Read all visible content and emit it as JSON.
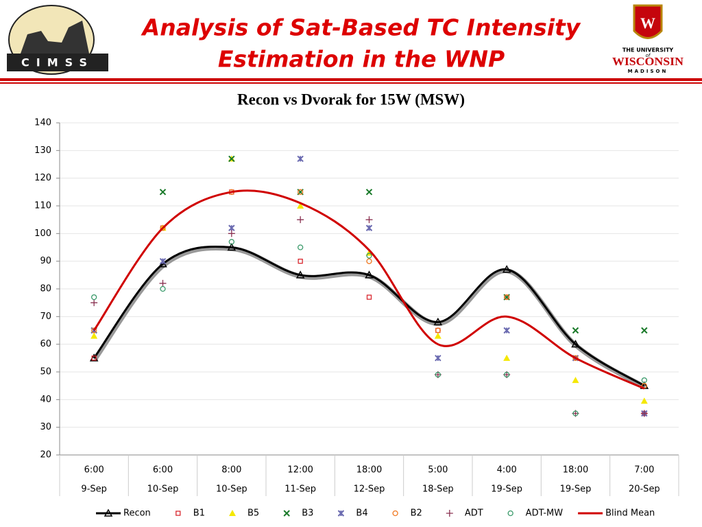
{
  "header": {
    "title_lines": [
      "Analysis of Sat-Based TC Intensity",
      "Estimation in the WNP"
    ],
    "left_logo": "CIMSS",
    "right_logo": [
      "THE UNIVERSITY",
      "of",
      "WISCONSIN",
      "MADISON"
    ]
  },
  "chart_data": {
    "type": "line",
    "title": "Recon vs Dvorak for 15W (MSW)",
    "categories": [
      [
        "6:00",
        "9-Sep"
      ],
      [
        "6:00",
        "10-Sep"
      ],
      [
        "8:00",
        "10-Sep"
      ],
      [
        "12:00",
        "11-Sep"
      ],
      [
        "18:00",
        "12-Sep"
      ],
      [
        "5:00",
        "18-Sep"
      ],
      [
        "4:00",
        "19-Sep"
      ],
      [
        "18:00",
        "19-Sep"
      ],
      [
        "7:00",
        "20-Sep"
      ]
    ],
    "ylim": [
      20,
      140
    ],
    "yticks": [
      20,
      30,
      40,
      50,
      60,
      70,
      80,
      90,
      100,
      110,
      120,
      130,
      140
    ],
    "grid": true,
    "legend": "bottom",
    "series": [
      {
        "name": "Recon",
        "color": "#000000",
        "marker": "triangle",
        "line": true,
        "values": [
          55,
          89,
          95,
          85,
          85,
          68,
          87,
          60,
          45
        ]
      },
      {
        "name": "B1",
        "color": "#d9272e",
        "marker": "square",
        "line": false,
        "values": [
          55,
          102,
          115,
          90,
          77,
          65,
          77,
          55,
          35
        ]
      },
      {
        "name": "B5",
        "color": "#f5e800",
        "marker": "triangle-fill",
        "line": false,
        "values": [
          63,
          102,
          127,
          110,
          93,
          63,
          55,
          47,
          39.5
        ]
      },
      {
        "name": "B3",
        "color": "#1a7a2a",
        "marker": "x",
        "line": false,
        "values": [
          65,
          115,
          127,
          115,
          115,
          null,
          77,
          65,
          65
        ]
      },
      {
        "name": "B4",
        "color": "#6a6ab0",
        "marker": "star",
        "line": false,
        "values": [
          65,
          90,
          102,
          127,
          102,
          55,
          65,
          55,
          35
        ]
      },
      {
        "name": "B2",
        "color": "#f07820",
        "marker": "circle",
        "line": false,
        "values": [
          65,
          102,
          115,
          115,
          90,
          65,
          77,
          55,
          45
        ]
      },
      {
        "name": "ADT",
        "color": "#8a3050",
        "marker": "plus",
        "line": false,
        "values": [
          75,
          82,
          100,
          105,
          105,
          49,
          49,
          35,
          35
        ]
      },
      {
        "name": "ADT-MW",
        "color": "#3a9a6a",
        "marker": "circle",
        "line": false,
        "values": [
          77,
          80,
          97,
          95,
          92,
          49,
          49,
          35,
          47
        ]
      },
      {
        "name": "Blind Mean",
        "color": "#d00000",
        "marker": "none",
        "line": true,
        "values": [
          65,
          102,
          115,
          111,
          94,
          60,
          70,
          55,
          44
        ]
      }
    ]
  }
}
